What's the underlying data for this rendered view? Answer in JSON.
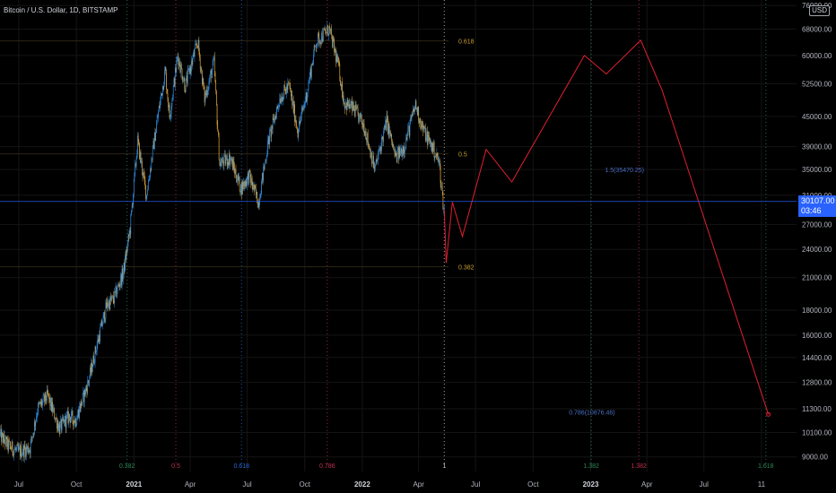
{
  "header": {
    "title": "Bitcoin / U.S. Dollar, 1D, BITSTAMP",
    "currency": "USD"
  },
  "price_tag": {
    "price": "30107.00",
    "countdown": "03:46"
  },
  "colors": {
    "background": "#000000",
    "candle_up": "#2f8fe6",
    "candle_down": "#d9a23a",
    "projection": "#e02030",
    "price_line": "#2962ff",
    "fib_level": "#c8a030",
    "fib_time_green": "#2a8a5a",
    "fib_time_red": "#c03050",
    "fib_time_blue": "#2a6ad8",
    "axis_text": "#b2b5be",
    "grid": "#141414"
  },
  "chart_data": {
    "type": "line",
    "title": "",
    "xlabel": "",
    "ylabel": "",
    "y_scale": "log",
    "ylim": [
      8400,
      78000
    ],
    "xlim": [
      "2020-06-01",
      "2023-11-26"
    ],
    "grid": true,
    "current_price": 30107.0,
    "x_ticks": [
      {
        "date": "2020-07-01",
        "label": "Jul"
      },
      {
        "date": "2020-10-01",
        "label": "Oct"
      },
      {
        "date": "2021-01-01",
        "label": "2021"
      },
      {
        "date": "2021-04-01",
        "label": "Apr"
      },
      {
        "date": "2021-07-01",
        "label": "Jul"
      },
      {
        "date": "2021-10-01",
        "label": "Oct"
      },
      {
        "date": "2022-01-01",
        "label": "2022"
      },
      {
        "date": "2022-04-01",
        "label": "Apr"
      },
      {
        "date": "2022-07-01",
        "label": "Jul"
      },
      {
        "date": "2022-10-01",
        "label": "Oct"
      },
      {
        "date": "2023-01-01",
        "label": "2023"
      },
      {
        "date": "2023-04-01",
        "label": "Apr"
      },
      {
        "date": "2023-07-01",
        "label": "Jul"
      },
      {
        "date": "2023-10-01",
        "label": "11"
      }
    ],
    "y_ticks": [
      {
        "value": 9000,
        "label": "9000.00"
      },
      {
        "value": 10100,
        "label": "10100.00"
      },
      {
        "value": 11300,
        "label": "11300.00"
      },
      {
        "value": 12800,
        "label": "12800.00"
      },
      {
        "value": 14400,
        "label": "14400.00"
      },
      {
        "value": 16000,
        "label": "16000.00"
      },
      {
        "value": 18000,
        "label": "18000.00"
      },
      {
        "value": 21000,
        "label": "21000.00"
      },
      {
        "value": 24000,
        "label": "24000.00"
      },
      {
        "value": 27000,
        "label": "27000.00"
      },
      {
        "value": 31000,
        "label": "31000.00"
      },
      {
        "value": 35000,
        "label": "35000.00"
      },
      {
        "value": 39000,
        "label": "39000.00"
      },
      {
        "value": 45000,
        "label": "45000.00"
      },
      {
        "value": 52500,
        "label": "52500.00"
      },
      {
        "value": 60000,
        "label": "60000.00"
      },
      {
        "value": 68000,
        "label": "68000.00"
      },
      {
        "value": 76000,
        "label": "76000.00"
      }
    ],
    "fib_retracement_levels": [
      {
        "label": "0.618",
        "value": 64300
      },
      {
        "label": "0.5",
        "value": 37700
      },
      {
        "label": "0.382",
        "value": 22100
      }
    ],
    "fib_time_zones": [
      {
        "label": "0.382",
        "date": "2020-12-21",
        "style": "green"
      },
      {
        "label": "0.5",
        "date": "2021-03-09",
        "style": "red"
      },
      {
        "label": "0.618",
        "date": "2021-06-22",
        "style": "blue"
      },
      {
        "label": "0.786",
        "date": "2021-11-06",
        "style": "red"
      },
      {
        "label": "1",
        "date": "2022-05-12",
        "style": "white"
      },
      {
        "label": "1.382",
        "date": "2023-01-02",
        "style": "green"
      },
      {
        "label": "1.382",
        "date": "2023-03-19",
        "style": "red"
      },
      {
        "label": "1.618",
        "date": "2023-10-08",
        "style": "green"
      }
    ],
    "annotations": [
      {
        "text": "1.5(35470.25)",
        "date": "2023-02-24",
        "value": 34600
      },
      {
        "text": "0.786(10876.46)",
        "date": "2023-01-03",
        "value": 11000
      }
    ],
    "series": [
      {
        "style": "candles",
        "points": [
          {
            "x": "2020-06-01",
            "y": 10000
          },
          {
            "x": "2020-06-15",
            "y": 9500
          },
          {
            "x": "2020-07-01",
            "y": 9200
          },
          {
            "x": "2020-07-20",
            "y": 9400
          },
          {
            "x": "2020-08-01",
            "y": 11300
          },
          {
            "x": "2020-08-17",
            "y": 12000
          },
          {
            "x": "2020-09-05",
            "y": 10300
          },
          {
            "x": "2020-09-20",
            "y": 10900
          },
          {
            "x": "2020-10-01",
            "y": 10700
          },
          {
            "x": "2020-10-21",
            "y": 12800
          },
          {
            "x": "2020-11-05",
            "y": 15500
          },
          {
            "x": "2020-11-20",
            "y": 18500
          },
          {
            "x": "2020-12-01",
            "y": 19000
          },
          {
            "x": "2020-12-16",
            "y": 21500
          },
          {
            "x": "2020-12-27",
            "y": 26500
          },
          {
            "x": "2021-01-08",
            "y": 40000
          },
          {
            "x": "2021-01-22",
            "y": 31000
          },
          {
            "x": "2021-02-08",
            "y": 44000
          },
          {
            "x": "2021-02-21",
            "y": 56000
          },
          {
            "x": "2021-02-28",
            "y": 45000
          },
          {
            "x": "2021-03-13",
            "y": 60000
          },
          {
            "x": "2021-03-25",
            "y": 52000
          },
          {
            "x": "2021-04-14",
            "y": 64000
          },
          {
            "x": "2021-04-25",
            "y": 49000
          },
          {
            "x": "2021-05-10",
            "y": 58000
          },
          {
            "x": "2021-05-19",
            "y": 36000
          },
          {
            "x": "2021-06-05",
            "y": 37000
          },
          {
            "x": "2021-06-22",
            "y": 32000
          },
          {
            "x": "2021-07-05",
            "y": 34000
          },
          {
            "x": "2021-07-20",
            "y": 30000
          },
          {
            "x": "2021-08-05",
            "y": 40000
          },
          {
            "x": "2021-08-23",
            "y": 49000
          },
          {
            "x": "2021-09-07",
            "y": 52000
          },
          {
            "x": "2021-09-21",
            "y": 42000
          },
          {
            "x": "2021-10-05",
            "y": 50000
          },
          {
            "x": "2021-10-20",
            "y": 64000
          },
          {
            "x": "2021-11-10",
            "y": 68000
          },
          {
            "x": "2021-11-25",
            "y": 57000
          },
          {
            "x": "2021-12-04",
            "y": 48000
          },
          {
            "x": "2021-12-20",
            "y": 46500
          },
          {
            "x": "2022-01-05",
            "y": 43000
          },
          {
            "x": "2022-01-22",
            "y": 35000
          },
          {
            "x": "2022-02-10",
            "y": 44000
          },
          {
            "x": "2022-02-24",
            "y": 37000
          },
          {
            "x": "2022-03-10",
            "y": 39000
          },
          {
            "x": "2022-03-28",
            "y": 47500
          },
          {
            "x": "2022-04-10",
            "y": 42000
          },
          {
            "x": "2022-04-26",
            "y": 38500
          },
          {
            "x": "2022-05-05",
            "y": 36000
          },
          {
            "x": "2022-05-10",
            "y": 31000
          },
          {
            "x": "2022-05-12",
            "y": 29000
          }
        ]
      },
      {
        "style": "projection",
        "points": [
          {
            "x": "2022-05-12",
            "y": 29000
          },
          {
            "x": "2022-05-15",
            "y": 22500
          },
          {
            "x": "2022-05-25",
            "y": 30000
          },
          {
            "x": "2022-06-10",
            "y": 25500
          },
          {
            "x": "2022-07-18",
            "y": 38500
          },
          {
            "x": "2022-08-28",
            "y": 33000
          },
          {
            "x": "2022-12-22",
            "y": 60000
          },
          {
            "x": "2023-01-26",
            "y": 55000
          },
          {
            "x": "2023-03-22",
            "y": 64500
          },
          {
            "x": "2023-04-25",
            "y": 51000
          },
          {
            "x": "2023-10-12",
            "y": 11000
          }
        ]
      }
    ]
  }
}
